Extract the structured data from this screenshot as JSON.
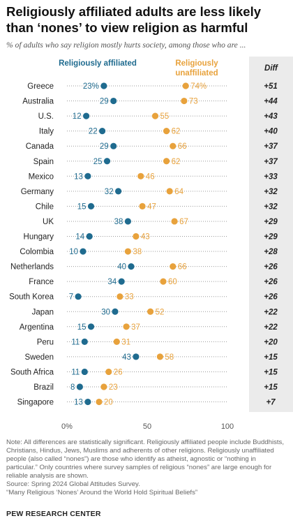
{
  "title": "Religiously affiliated adults are less likely than ‘nones’ to view religion as harmful",
  "subtitle": "% of adults who say religion mostly hurts society, among those who are ...",
  "legend": {
    "affiliated": "Religiously affiliated",
    "unaffiliated": "Religiously unaffiliated",
    "diff": "Diff"
  },
  "colors": {
    "affiliated": "#1f6b8f",
    "unaffiliated": "#e8a23c",
    "dots_line": "#9a9a9a",
    "diff_band": "#ebebeb"
  },
  "chart_data": {
    "type": "scatter",
    "subtype": "dot-plot",
    "xlim": [
      0,
      100
    ],
    "x_ticks": [
      "0%",
      "50",
      "100"
    ],
    "categories": [
      "Greece",
      "Australia",
      "U.S.",
      "Italy",
      "Canada",
      "Spain",
      "Mexico",
      "Germany",
      "Chile",
      "UK",
      "Hungary",
      "Colombia",
      "Netherlands",
      "France",
      "South Korea",
      "Japan",
      "Argentina",
      "Peru",
      "Sweden",
      "South Africa",
      "Brazil",
      "Singapore"
    ],
    "series": [
      {
        "name": "Religiously affiliated",
        "values": [
          23,
          29,
          12,
          22,
          29,
          25,
          13,
          32,
          15,
          38,
          14,
          10,
          40,
          34,
          7,
          30,
          15,
          11,
          43,
          11,
          8,
          13
        ]
      },
      {
        "name": "Religiously unaffiliated",
        "values": [
          74,
          73,
          55,
          62,
          66,
          62,
          46,
          64,
          47,
          67,
          43,
          38,
          66,
          60,
          33,
          52,
          37,
          31,
          58,
          26,
          23,
          20
        ]
      }
    ],
    "diff": [
      "+51",
      "+44",
      "+43",
      "+40",
      "+37",
      "+37",
      "+33",
      "+32",
      "+32",
      "+29",
      "+29",
      "+28",
      "+26",
      "+26",
      "+26",
      "+22",
      "+22",
      "+20",
      "+15",
      "+15",
      "+15",
      "+7"
    ],
    "first_row_label_suffix": "%"
  },
  "notes": {
    "note": "Note: All differences are statistically significant. Religiously affiliated people include Buddhists, Christians, Hindus, Jews, Muslims and adherents of other religions. Religiously unaffiliated people (also called “nones”) are those who identify as atheist, agnostic or “nothing in particular.” Only countries where survey samples of religious “nones” are large enough for reliable analysis are shown.",
    "source": "Source: Spring 2024 Global Attitudes Survey.",
    "report": "“Many Religious ‘Nones’ Around the World Hold Spiritual Beliefs”"
  },
  "brand": "PEW RESEARCH CENTER"
}
